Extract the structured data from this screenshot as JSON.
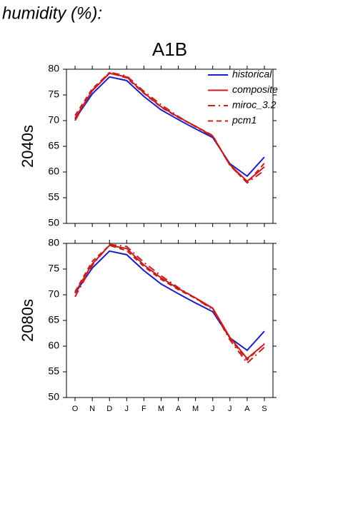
{
  "heading": "humidity (%):",
  "chart_data": [
    {
      "type": "line",
      "title": "A1B",
      "ylabel": "2040s",
      "categories": [
        null,
        null,
        null,
        null,
        null,
        null,
        null,
        null,
        null,
        null,
        null,
        null
      ],
      "ylim": [
        50,
        80
      ],
      "yticks": [
        50,
        55,
        60,
        65,
        70,
        75,
        80
      ],
      "legend": "upper right",
      "series": [
        {
          "name": "historical",
          "color": "#1c1cc8",
          "dash": "solid",
          "values": [
            70.3,
            75.2,
            78.5,
            77.8,
            74.7,
            72.1,
            70.2,
            68.4,
            66.7,
            61.6,
            59.2,
            62.9
          ]
        },
        {
          "name": "composite",
          "color": "#c81e1e",
          "dash": "solid",
          "values": [
            70.5,
            75.8,
            79.2,
            78.5,
            75.4,
            72.7,
            70.7,
            68.9,
            67.0,
            61.4,
            58.2,
            61.0
          ]
        },
        {
          "name": "miroc_3.2",
          "color": "#c81e1e",
          "dash": "dash-dot",
          "values": [
            70.0,
            75.9,
            79.4,
            78.7,
            75.7,
            73.1,
            70.8,
            68.8,
            66.9,
            61.3,
            57.9,
            60.3
          ]
        },
        {
          "name": "pcm1",
          "color": "#c81e1e",
          "dash": "dash",
          "values": [
            71.0,
            76.2,
            79.3,
            78.3,
            75.3,
            72.6,
            70.6,
            68.9,
            67.1,
            61.3,
            57.9,
            61.7
          ]
        }
      ]
    },
    {
      "type": "line",
      "ylabel": "2080s",
      "categories": [
        "O",
        "N",
        "D",
        "J",
        "F",
        "M",
        "A",
        "M",
        "J",
        "J",
        "A",
        "S"
      ],
      "ylim": [
        50,
        80
      ],
      "yticks": [
        50,
        55,
        60,
        65,
        70,
        75,
        80
      ],
      "series": [
        {
          "color": "#1c1cc8",
          "dash": "solid",
          "values": [
            70.3,
            75.2,
            78.5,
            77.8,
            74.7,
            72.1,
            70.2,
            68.4,
            66.7,
            61.6,
            59.2,
            62.9
          ]
        },
        {
          "color": "#c81e1e",
          "dash": "solid",
          "values": [
            70.4,
            76.0,
            79.6,
            79.0,
            75.8,
            73.3,
            71.2,
            69.4,
            67.4,
            61.7,
            57.6,
            60.4
          ]
        },
        {
          "color": "#c81e1e",
          "dash": "dash-dot",
          "values": [
            69.6,
            75.7,
            79.8,
            79.4,
            76.3,
            73.7,
            71.4,
            69.3,
            67.1,
            61.2,
            56.7,
            59.8
          ]
        },
        {
          "color": "#c81e1e",
          "dash": "dash",
          "values": [
            70.6,
            76.5,
            79.6,
            78.6,
            75.5,
            73.0,
            71.0,
            69.3,
            67.3,
            61.4,
            57.3,
            60.5
          ]
        }
      ]
    }
  ]
}
